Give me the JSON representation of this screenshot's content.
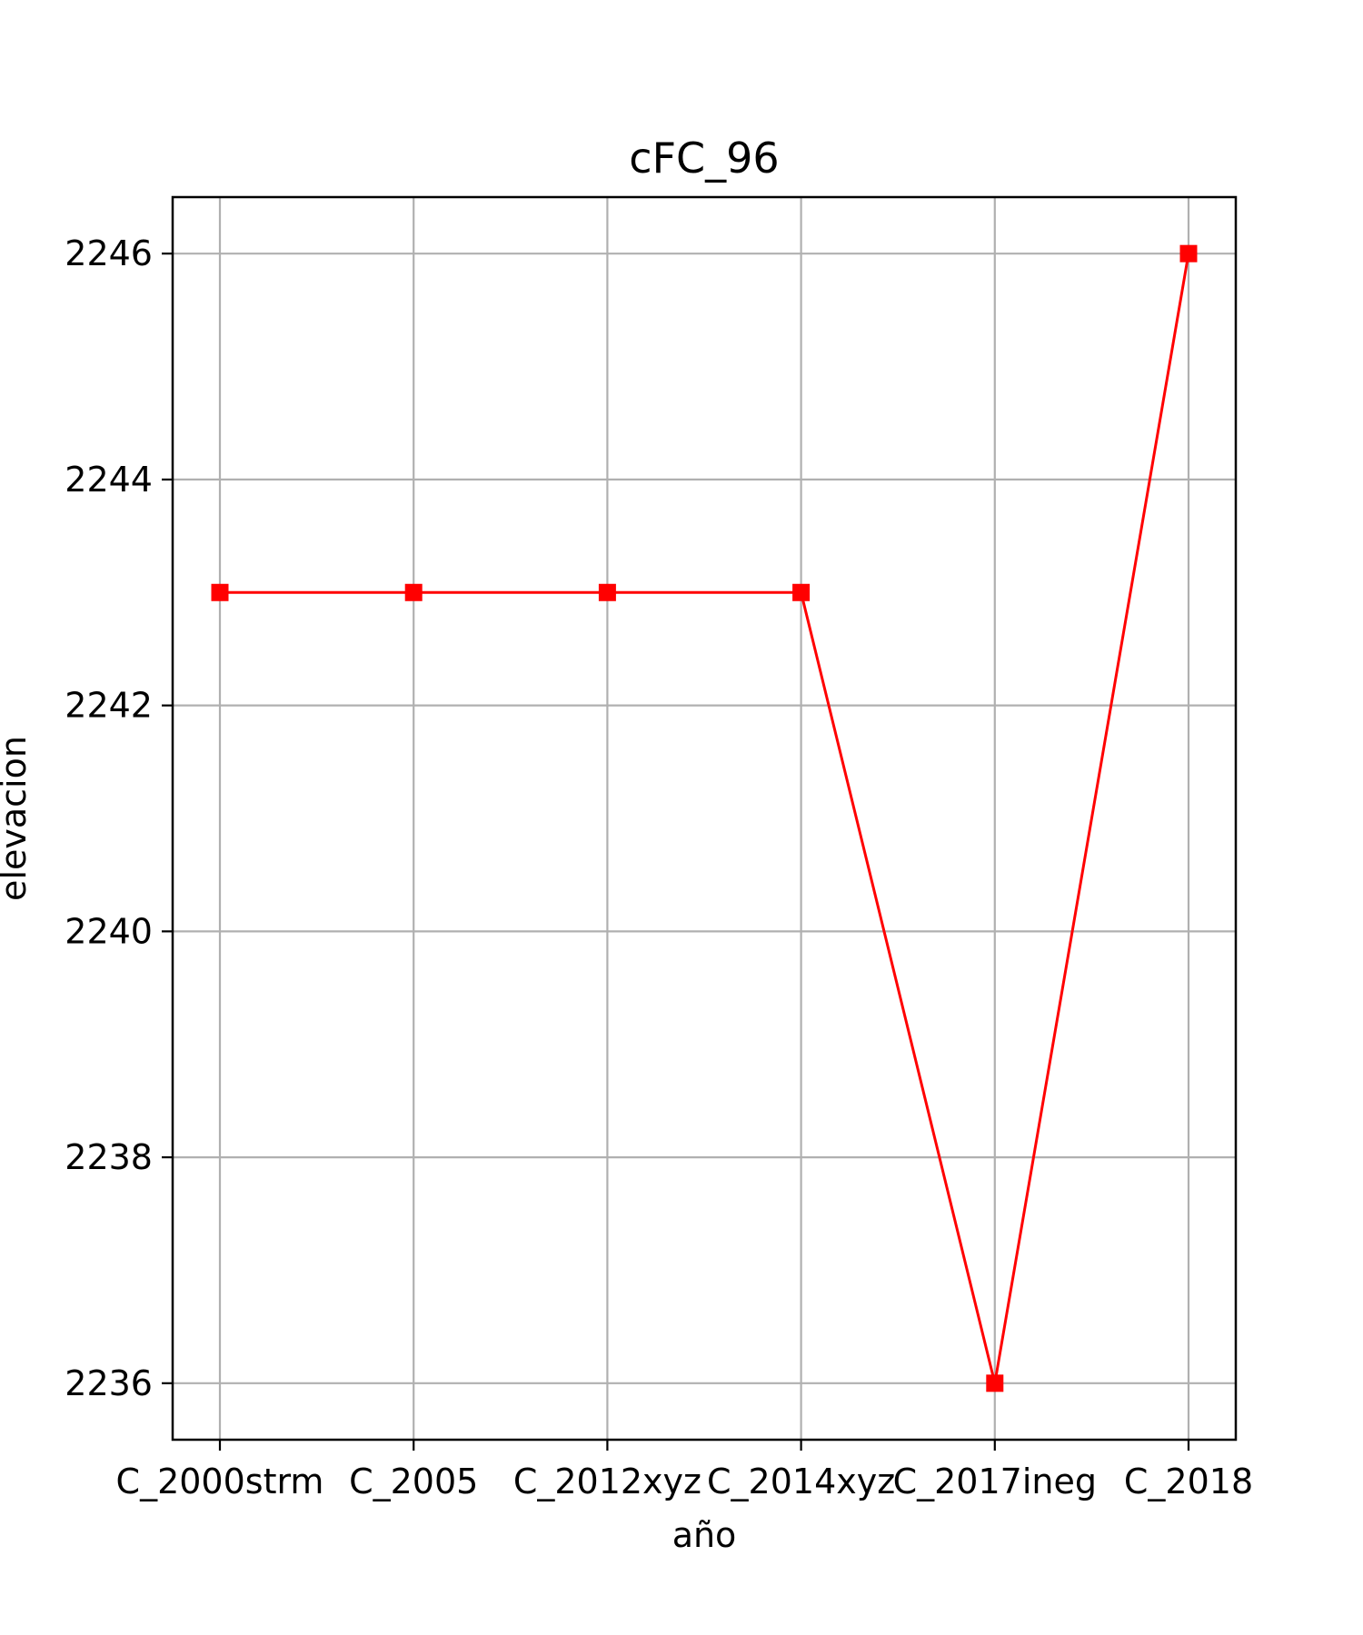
{
  "chart_data": {
    "type": "line",
    "title": "cFC_96",
    "xlabel": "año",
    "ylabel": "elevacion",
    "categories": [
      "C_2000strm",
      "C_2005",
      "C_2012xyz",
      "C_2014xyz",
      "C_2017ineg",
      "C_2018"
    ],
    "series": [
      {
        "values": [
          2243,
          2243,
          2243,
          2243,
          2236,
          2246
        ],
        "color": "#ff0000",
        "marker": "square"
      }
    ],
    "ylim": [
      2235.5,
      2246.5
    ],
    "yticks": [
      2236,
      2238,
      2240,
      2242,
      2244,
      2246
    ],
    "grid": true,
    "gridColor": "#b0b0b0"
  }
}
